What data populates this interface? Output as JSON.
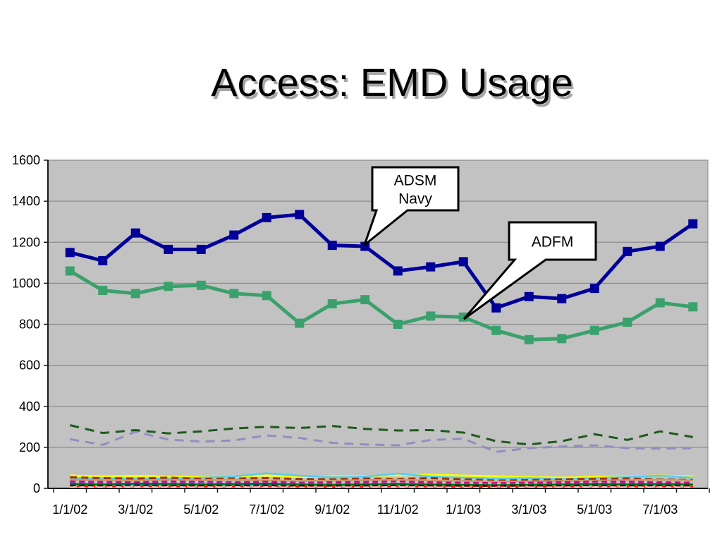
{
  "title": "Access: EMD Usage",
  "chart_data": {
    "type": "line",
    "title": "Access: EMD Usage",
    "xlabel": "",
    "ylabel": "",
    "ylim": [
      0,
      1600
    ],
    "y_ticks": [
      0,
      200,
      400,
      600,
      800,
      1000,
      1200,
      1400,
      1600
    ],
    "n_points": 20,
    "x_tick_labels": [
      "1/1/02",
      "3/1/02",
      "5/1/02",
      "7/1/02",
      "9/1/02",
      "11/1/02",
      "1/1/03",
      "3/1/03",
      "5/1/03",
      "7/1/03"
    ],
    "grid": true,
    "legend": "none",
    "plot_bg": "#c2c2c2",
    "grid_color": "#8c8c8c",
    "axis_color": "#1a1a1a",
    "series": [
      {
        "name": "",
        "color": "#ffff00",
        "width": 3,
        "dash": null,
        "marker": false,
        "values": [
          62,
          58,
          60,
          57,
          55,
          58,
          62,
          56,
          58,
          60,
          64,
          66,
          62,
          58,
          54,
          52,
          55,
          58,
          62,
          58
        ]
      },
      {
        "name": "",
        "color": "#55ccee",
        "width": 2.5,
        "dash": null,
        "marker": false,
        "values": [
          48,
          50,
          46,
          48,
          52,
          58,
          74,
          62,
          54,
          58,
          72,
          58,
          52,
          48,
          50,
          46,
          50,
          56,
          62,
          52
        ]
      },
      {
        "name": "",
        "color": "#993300",
        "width": 3,
        "dash": "10,6",
        "marker": false,
        "values": [
          54,
          50,
          48,
          52,
          46,
          48,
          50,
          46,
          44,
          48,
          46,
          50,
          44,
          38,
          40,
          44,
          46,
          48,
          44,
          40
        ]
      },
      {
        "name": "",
        "color": "#cc9966",
        "width": 2.5,
        "dash": null,
        "marker": false,
        "values": [
          42,
          40,
          38,
          42,
          40,
          42,
          38,
          36,
          38,
          40,
          42,
          38,
          36,
          33,
          34,
          36,
          38,
          40,
          42,
          38
        ]
      },
      {
        "name": "",
        "color": "#cc0099",
        "width": 2.5,
        "dash": "8,5",
        "marker": false,
        "values": [
          34,
          32,
          30,
          34,
          32,
          30,
          33,
          28,
          30,
          32,
          34,
          30,
          28,
          26,
          28,
          30,
          33,
          33,
          30,
          28
        ]
      },
      {
        "name": "",
        "color": "#9933cc",
        "width": 2,
        "dash": "8,5",
        "marker": false,
        "values": [
          28,
          26,
          24,
          26,
          28,
          26,
          24,
          26,
          24,
          26,
          24,
          22,
          24,
          22,
          20,
          22,
          24,
          26,
          24,
          22
        ]
      },
      {
        "name": "",
        "color": "#008080",
        "width": 2,
        "dash": null,
        "marker": false,
        "values": [
          18,
          17,
          19,
          18,
          17,
          18,
          19,
          17,
          16,
          17,
          18,
          17,
          16,
          15,
          16,
          17,
          18,
          17,
          18,
          17
        ]
      },
      {
        "name": "",
        "color": "#006600",
        "width": 2,
        "dash": null,
        "marker": false,
        "values": [
          22,
          20,
          24,
          22,
          20,
          22,
          24,
          20,
          18,
          20,
          22,
          20,
          18,
          16,
          18,
          20,
          22,
          20,
          22,
          20
        ]
      },
      {
        "name": "",
        "color": "#000000",
        "width": 2,
        "dash": "8,5",
        "marker": false,
        "values": [
          14,
          13,
          15,
          14,
          13,
          14,
          15,
          13,
          12,
          13,
          14,
          13,
          12,
          10,
          12,
          13,
          14,
          13,
          14,
          13
        ]
      },
      {
        "name": "",
        "color": "#ff0000",
        "width": 2,
        "dash": "6,4",
        "marker": false,
        "values": [
          10,
          9,
          11,
          10,
          9,
          10,
          11,
          9,
          8,
          9,
          10,
          9,
          8,
          7,
          8,
          9,
          10,
          9,
          10,
          9
        ]
      },
      {
        "name": "",
        "color": "#ffffff",
        "width": 2,
        "dash": "8,5",
        "marker": false,
        "values": [
          5,
          5,
          6,
          5,
          5,
          6,
          5,
          4,
          5,
          5,
          6,
          5,
          4,
          4,
          5,
          5,
          6,
          5,
          5,
          5
        ]
      },
      {
        "name": "",
        "color": "#8f8fc3",
        "width": 3,
        "dash": "13,9",
        "marker": false,
        "values": [
          240,
          212,
          276,
          238,
          228,
          234,
          258,
          246,
          222,
          214,
          210,
          236,
          242,
          178,
          196,
          204,
          210,
          196,
          194,
          196
        ]
      },
      {
        "name": "",
        "color": "#1e5a1e",
        "width": 3,
        "dash": "13,9",
        "marker": false,
        "values": [
          308,
          270,
          284,
          268,
          278,
          292,
          300,
          294,
          304,
          290,
          282,
          284,
          272,
          230,
          214,
          230,
          264,
          236,
          278,
          250
        ]
      },
      {
        "name": "ADFM",
        "color": "#3ba16c",
        "width": 5,
        "dash": null,
        "marker": true,
        "values": [
          1060,
          965,
          950,
          985,
          990,
          950,
          940,
          805,
          900,
          920,
          800,
          840,
          835,
          770,
          725,
          730,
          770,
          810,
          905,
          885
        ]
      },
      {
        "name": "ADSM Navy",
        "color": "#000099",
        "width": 5,
        "dash": null,
        "marker": true,
        "values": [
          1150,
          1110,
          1245,
          1165,
          1165,
          1235,
          1320,
          1335,
          1185,
          1180,
          1060,
          1080,
          1105,
          880,
          935,
          925,
          975,
          1155,
          1180,
          1290
        ]
      }
    ],
    "annotations": [
      {
        "id": "adsm-navy-callout",
        "lines": [
          "ADSM",
          "Navy"
        ],
        "target_series": "ADSM Navy"
      },
      {
        "id": "adfm-callout",
        "lines": [
          "ADFM"
        ],
        "target_series": "ADFM"
      }
    ]
  }
}
